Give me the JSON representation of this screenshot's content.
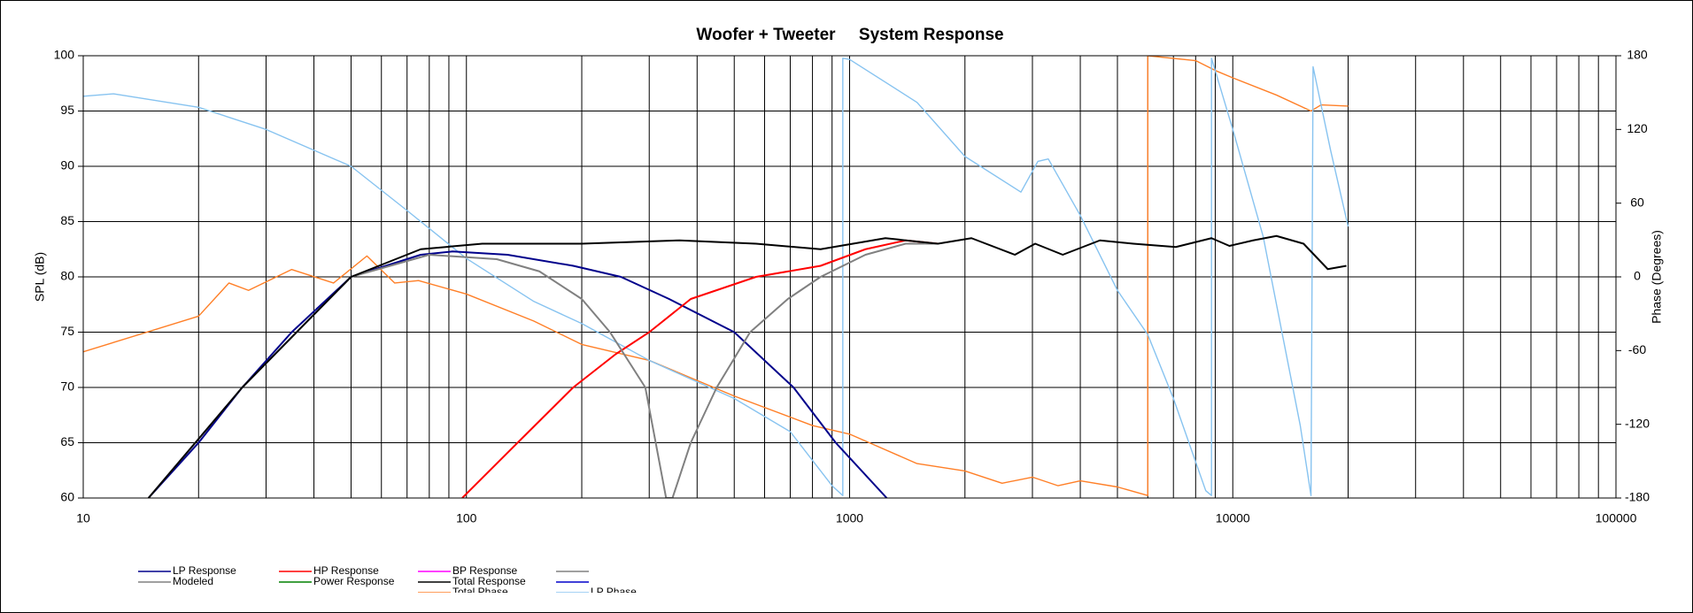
{
  "chart_data": {
    "type": "line",
    "title": "Woofer + Tweeter     System Response",
    "y_label": "SPL (dB)",
    "y2_label": "Phase (Degrees)",
    "log_x": true,
    "grid": true,
    "xlim": [
      10,
      100000
    ],
    "xticks": [
      10,
      100,
      1000,
      10000,
      100000
    ],
    "ylim": [
      60,
      100
    ],
    "yticks": [
      60,
      65,
      70,
      75,
      80,
      85,
      90,
      95,
      100
    ],
    "y2lim": [
      -180,
      180
    ],
    "y2ticks": [
      -180,
      -120,
      -60,
      0,
      60,
      120,
      180
    ],
    "series": [
      {
        "name": "LP Response",
        "color": "#00008b",
        "x": [
          14.8,
          20,
          26,
          35,
          50,
          76,
          92,
          128,
          190,
          253,
          338,
          500,
          714,
          920,
          1250
        ],
        "values": [
          60,
          65,
          70,
          75,
          80,
          82,
          82.3,
          82,
          81,
          80,
          78,
          75,
          70,
          65,
          60
        ]
      },
      {
        "name": "HP Response",
        "color": "#ff0000",
        "x": [
          97.5,
          136,
          190,
          245,
          300,
          385,
          570,
          840,
          1100,
          1400,
          1700
        ],
        "values": [
          60,
          65,
          70,
          73,
          75,
          78,
          80,
          81,
          82.5,
          83.3,
          83
        ]
      },
      {
        "name": "BP Response",
        "color": "#ff00ff",
        "x": [],
        "values": []
      },
      {
        "name": "Modeled",
        "color": "#808080",
        "x": [
          14.8,
          26,
          50,
          80,
          120,
          155,
          200,
          237,
          293,
          332,
          345,
          385,
          450,
          550,
          690,
          840,
          1100,
          1400,
          1700
        ],
        "values": [
          60,
          70,
          80,
          82,
          81.6,
          80.5,
          78,
          75,
          70,
          60,
          60,
          65,
          70,
          75,
          78,
          80,
          82,
          83,
          83
        ]
      },
      {
        "name": "Power Response",
        "color": "#008000",
        "x": [],
        "values": []
      },
      {
        "name": "Total Response",
        "color": "#000000",
        "x": [
          14.8,
          26,
          50,
          76,
          110,
          200,
          360,
          570,
          840,
          1240,
          1700,
          2080,
          2700,
          3050,
          3600,
          4500,
          5500,
          7100,
          8800,
          9800,
          11300,
          13000,
          15300,
          17700,
          19800
        ],
        "values": [
          60,
          70,
          80,
          82.5,
          83,
          83,
          83.3,
          83,
          82.5,
          83.5,
          83,
          83.5,
          82,
          83,
          82,
          83.3,
          83,
          82.7,
          83.5,
          82.8,
          83.3,
          83.7,
          83,
          80.7,
          81
        ]
      },
      {
        "name": "Total Phase",
        "color": "#ff7f27",
        "axis": "y2",
        "x": [
          10,
          20,
          24,
          27,
          35,
          45,
          55,
          65,
          75,
          100,
          150,
          200,
          300,
          500,
          800,
          1000,
          1500,
          2000,
          2500,
          3000,
          3500,
          4000,
          5000,
          6000,
          6000,
          8000,
          9000,
          10000,
          13000,
          16000,
          17000,
          20000
        ],
        "values": [
          -61,
          -32,
          -5,
          -11,
          6,
          -5,
          17,
          -5,
          -3,
          -14,
          -36,
          -55,
          -68,
          -97,
          -121,
          -128,
          -152,
          -158,
          -168,
          -163,
          -170,
          -166,
          -171,
          -178,
          180,
          176,
          168,
          162,
          148,
          135,
          140,
          139
        ]
      },
      {
        "name": "LP Phase",
        "color": "#87c3f0",
        "axis": "y2",
        "x": [
          10,
          12,
          20,
          30,
          50,
          70,
          100,
          150,
          200,
          300,
          500,
          700,
          900,
          960,
          960,
          1000,
          1500,
          2000,
          2800,
          3100,
          3300,
          4000,
          5000,
          6000,
          7000,
          8500,
          8800,
          8800,
          10000,
          12000,
          15000,
          16000,
          16200,
          18000,
          20000
        ],
        "values": [
          147,
          149,
          138,
          120,
          90,
          54,
          15,
          -20,
          -38,
          -68,
          -99,
          -126,
          -170,
          -178,
          178,
          177,
          142,
          98,
          69,
          94,
          96,
          50,
          -11,
          -47,
          -99,
          -174,
          -178,
          178,
          120,
          33,
          -121,
          -178,
          171,
          103,
          41
        ]
      }
    ]
  }
}
